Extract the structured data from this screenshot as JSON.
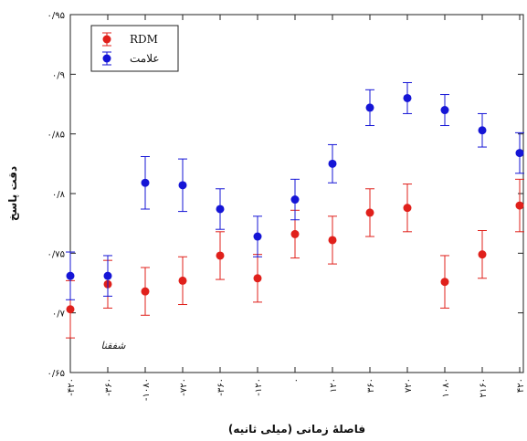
{
  "chart_data": {
    "type": "scatter",
    "xlabel": "فاصلهٔ زمانی (میلی ثانیه)",
    "ylabel": "دقت پاسخ",
    "ylim": [
      0.65,
      0.95
    ],
    "yticks": [
      0.65,
      0.7,
      0.75,
      0.8,
      0.85,
      0.9,
      0.95
    ],
    "ytick_labels": [
      "۰/۶۵",
      "۰/۷",
      "۰/۷۵",
      "۰/۸",
      "۰/۸۵",
      "۰/۹",
      "۰/۹۵"
    ],
    "categories": [
      "-۴۲۰",
      "-۳۶۰",
      "-۱۰۸۰",
      "-۷۲۰",
      "-۳۶۰",
      "-۱۲۰",
      "۰",
      "۱۲۰",
      "۳۶۰",
      "۷۲۰",
      "۱۰۸۰",
      "۲۱۶۰",
      "۴۲۰"
    ],
    "grid": false,
    "legend_position": "top-left",
    "series": [
      {
        "name": "RDM",
        "color": "#e0201b",
        "values": [
          0.703,
          0.724,
          0.718,
          0.727,
          0.748,
          0.729,
          0.766,
          0.761,
          0.784,
          0.788,
          0.726,
          0.749,
          0.79
        ],
        "errors": [
          0.024,
          0.02,
          0.02,
          0.02,
          0.02,
          0.02,
          0.02,
          0.02,
          0.02,
          0.02,
          0.022,
          0.02,
          0.022
        ]
      },
      {
        "name": "علامت",
        "color": "#1515d6",
        "values": [
          0.731,
          0.731,
          0.809,
          0.807,
          0.787,
          0.764,
          0.795,
          0.825,
          0.872,
          0.88,
          0.87,
          0.853,
          0.834
        ],
        "errors": [
          0.02,
          0.017,
          0.022,
          0.022,
          0.017,
          0.017,
          0.017,
          0.016,
          0.015,
          0.013,
          0.013,
          0.014,
          0.017
        ]
      }
    ]
  },
  "watermark_text": "شفقنا"
}
